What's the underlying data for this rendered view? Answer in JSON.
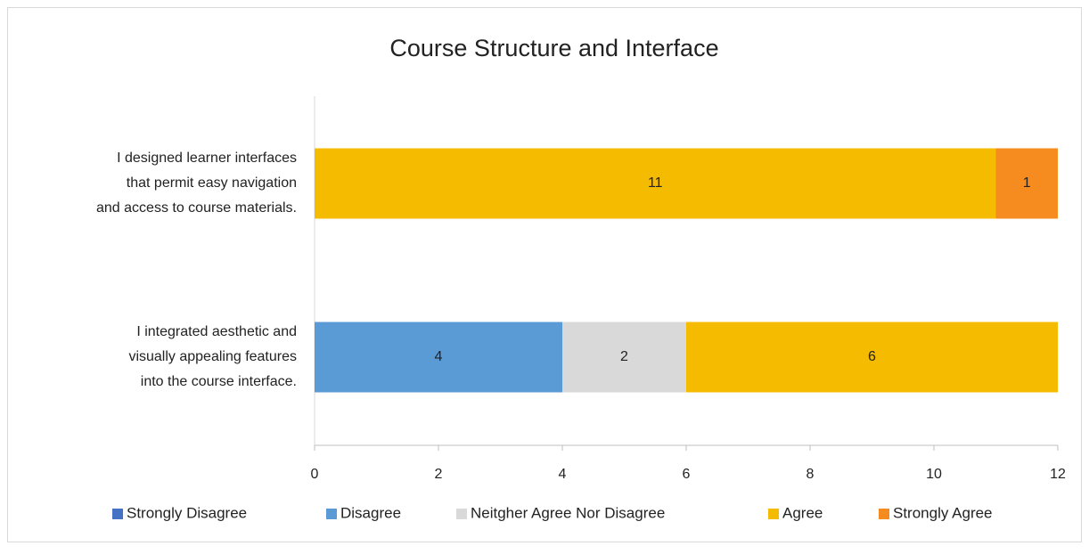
{
  "chart_data": {
    "type": "stacked-barh",
    "title": "Course Structure and Interface",
    "categories": [
      [
        "I designed learner interfaces",
        "that permit easy navigation",
        "and access to course materials."
      ],
      [
        "I integrated aesthetic and",
        "visually appealing features",
        "into the course interface."
      ]
    ],
    "series": [
      {
        "name": "Strongly Disagree",
        "color": "#4472c4",
        "values": [
          0,
          0
        ]
      },
      {
        "name": "Disagree",
        "color": "#5b9bd5",
        "values": [
          0,
          4
        ]
      },
      {
        "name": "Neitgher Agree Nor Disagree",
        "color": "#d9d9d9",
        "values": [
          0,
          2
        ]
      },
      {
        "name": "Agree",
        "color": "#f5bb00",
        "values": [
          11,
          6
        ]
      },
      {
        "name": "Strongly Agree",
        "color": "#f68b1f",
        "values": [
          1,
          0
        ]
      }
    ],
    "xlim": [
      0,
      12
    ],
    "xticks": [
      0,
      2,
      4,
      6,
      8,
      10,
      12
    ],
    "legend": "bottom"
  }
}
